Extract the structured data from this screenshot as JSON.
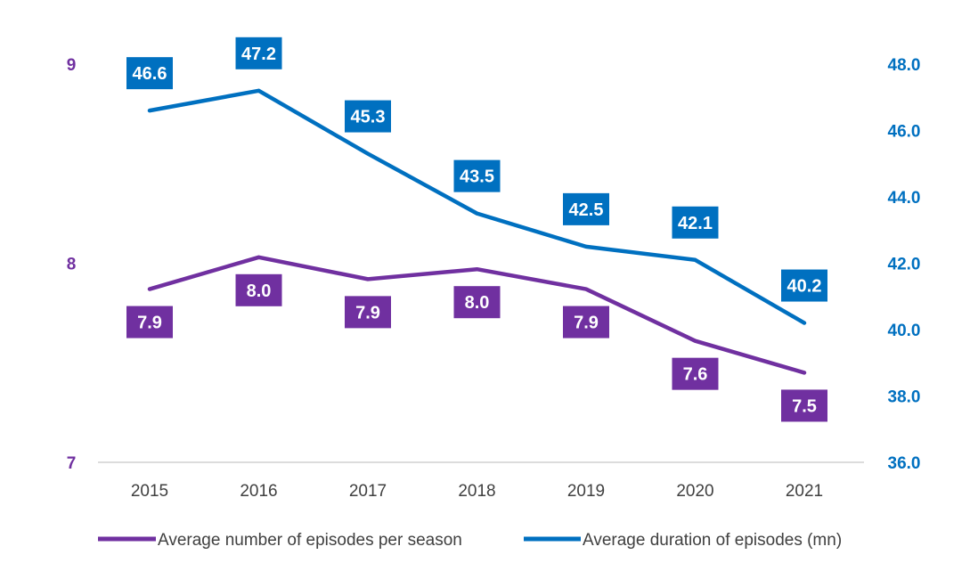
{
  "chart_data": {
    "type": "line",
    "categories": [
      "2015",
      "2016",
      "2017",
      "2018",
      "2019",
      "2020",
      "2021"
    ],
    "y_left": {
      "ylim": [
        7,
        9
      ],
      "ticks": [
        "7",
        "8",
        "9"
      ]
    },
    "y_right": {
      "ylim": [
        36,
        48
      ],
      "ticks": [
        "36.0",
        "38.0",
        "40.0",
        "42.0",
        "44.0",
        "46.0",
        "48.0"
      ]
    },
    "series": [
      {
        "name": "Average number of episodes per season",
        "axis": "left",
        "color": "#7030A0",
        "values": [
          7.87,
          8.03,
          7.92,
          7.97,
          7.87,
          7.61,
          7.45
        ],
        "labels": [
          "7.9",
          "8.0",
          "7.9",
          "8.0",
          "7.9",
          "7.6",
          "7.5"
        ]
      },
      {
        "name": "Average duration of episodes (mn)",
        "axis": "right",
        "color": "#0070C0",
        "values": [
          46.6,
          47.2,
          45.3,
          43.5,
          42.5,
          42.1,
          40.2
        ],
        "labels": [
          "46.6",
          "47.2",
          "45.3",
          "43.5",
          "42.5",
          "42.1",
          "40.2"
        ]
      }
    ],
    "legend": "bottom",
    "grid": false
  }
}
